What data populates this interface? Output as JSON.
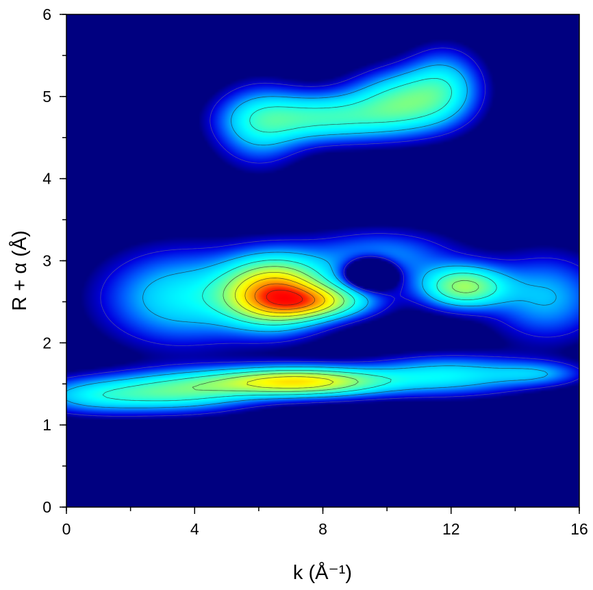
{
  "chart_data": {
    "type": "heatmap",
    "title": "",
    "xlabel": "k (Å⁻¹)",
    "ylabel": "R + α (Å)",
    "xlim": [
      0,
      16
    ],
    "ylim": [
      0,
      6
    ],
    "x_ticks": [
      0,
      4,
      8,
      12,
      16
    ],
    "x_tick_labels": [
      "0",
      "4",
      "8",
      "12",
      "16"
    ],
    "y_ticks": [
      0,
      1,
      2,
      3,
      4,
      5,
      6
    ],
    "y_tick_labels": [
      "0",
      "1",
      "2",
      "3",
      "4",
      "5",
      "6"
    ],
    "x_minor_step": 2,
    "y_minor_step": 0.5,
    "grid": false,
    "legend": "none",
    "colormap": [
      "#000080",
      "#0000e0",
      "#0060ff",
      "#00c8ff",
      "#00ffff",
      "#40ffc0",
      "#80ff80",
      "#c8ff40",
      "#ffff00",
      "#ffc000",
      "#ff8000",
      "#ff2000",
      "#ff0000"
    ],
    "contour_levels": [
      0.08,
      0.2,
      0.32,
      0.44,
      0.56,
      0.68,
      0.8,
      0.92
    ],
    "features": [
      {
        "label": "peak",
        "x": 6.5,
        "y": 2.62,
        "intensity": 1.0
      },
      {
        "label": "peak",
        "x": 7.8,
        "y": 2.5,
        "intensity": 0.6
      },
      {
        "label": "peak",
        "x": 12.4,
        "y": 2.68,
        "intensity": 0.62
      },
      {
        "label": "ridge",
        "x": 3.5,
        "y": 2.55,
        "intensity": 0.35
      },
      {
        "label": "ridge",
        "x": 15.0,
        "y": 2.55,
        "intensity": 0.28
      },
      {
        "label": "ridge",
        "x": 9.8,
        "y": 3.05,
        "intensity": 0.25
      },
      {
        "label": "peak",
        "x": 7.2,
        "y": 1.52,
        "intensity": 0.88
      },
      {
        "label": "ridge",
        "x": 3.5,
        "y": 1.4,
        "intensity": 0.45
      },
      {
        "label": "ridge",
        "x": 0.8,
        "y": 1.35,
        "intensity": 0.3
      },
      {
        "label": "ridge",
        "x": 12.0,
        "y": 1.6,
        "intensity": 0.35
      },
      {
        "label": "ridge",
        "x": 14.8,
        "y": 1.62,
        "intensity": 0.2
      },
      {
        "label": "peak",
        "x": 8.0,
        "y": 4.75,
        "intensity": 0.45
      },
      {
        "label": "peak",
        "x": 10.5,
        "y": 4.95,
        "intensity": 0.45
      },
      {
        "label": "ridge",
        "x": 6.0,
        "y": 4.65,
        "intensity": 0.3
      },
      {
        "label": "ridge",
        "x": 11.8,
        "y": 5.15,
        "intensity": 0.3
      },
      {
        "label": "dip",
        "x": 9.5,
        "y": 2.85,
        "intensity": -0.6
      }
    ]
  }
}
